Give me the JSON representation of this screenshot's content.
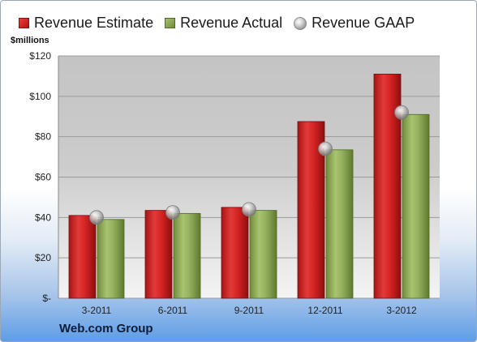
{
  "legend": {
    "estimate": "Revenue Estimate",
    "actual": "Revenue Actual",
    "gaap": "Revenue GAAP"
  },
  "unit_label": "$millions",
  "company": "Web.com Group",
  "colors": {
    "estimate": "#c81e1e",
    "actual": "#8fab5a",
    "gaap": "#a8a8a8"
  },
  "chart_data": {
    "type": "bar",
    "categories": [
      "3-2011",
      "6-2011",
      "9-2011",
      "12-2011",
      "3-2012"
    ],
    "series": [
      {
        "name": "Revenue Estimate",
        "values": [
          41,
          43.5,
          45,
          87.5,
          111
        ]
      },
      {
        "name": "Revenue Actual",
        "values": [
          39,
          42,
          43.5,
          73.5,
          91
        ]
      },
      {
        "name": "Revenue GAAP",
        "values": [
          40,
          42.5,
          44,
          74,
          92
        ]
      }
    ],
    "ylabel": "$millions",
    "ylim": [
      0,
      120
    ],
    "yticks": [
      0,
      20,
      40,
      60,
      80,
      100,
      120
    ],
    "ytick_labels": [
      "$-",
      "$20",
      "$40",
      "$60",
      "$80",
      "$100",
      "$120"
    ],
    "grid": true,
    "legend_position": "top"
  }
}
